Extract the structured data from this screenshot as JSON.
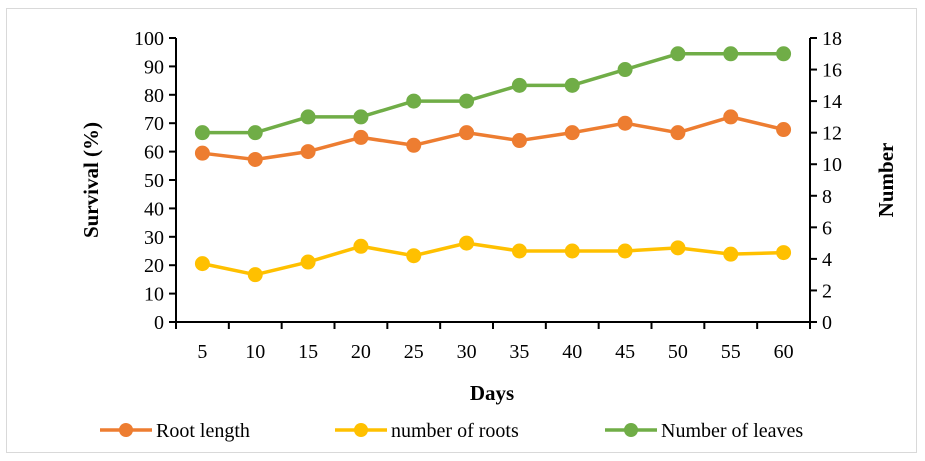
{
  "chart_data": {
    "type": "line",
    "title": "",
    "x": [
      5,
      10,
      15,
      20,
      25,
      30,
      35,
      40,
      45,
      50,
      55,
      60
    ],
    "xlabel": "Days",
    "ylabel_left": "Survival (%)",
    "ylabel_right": "Number",
    "ylim_left": [
      0,
      100
    ],
    "ylim_right": [
      0,
      18
    ],
    "yticks_left": [
      0,
      10,
      20,
      30,
      40,
      50,
      60,
      70,
      80,
      90,
      100
    ],
    "yticks_right": [
      0,
      2,
      4,
      6,
      8,
      10,
      12,
      14,
      16,
      18
    ],
    "grid": false,
    "legend_position": "bottom",
    "series": [
      {
        "name": "Root length",
        "axis": "right",
        "color": "#ed7d31",
        "values": [
          10.7,
          10.3,
          10.8,
          11.7,
          11.2,
          12.0,
          11.5,
          12.0,
          12.6,
          12.0,
          13.0,
          12.2
        ]
      },
      {
        "name": "number of roots",
        "axis": "right",
        "color": "#ffc000",
        "values": [
          3.7,
          3.0,
          3.8,
          4.8,
          4.2,
          5.0,
          4.5,
          4.5,
          4.5,
          4.7,
          4.3,
          4.4
        ]
      },
      {
        "name": "Number of leaves",
        "axis": "right",
        "color": "#70ad47",
        "values": [
          12,
          12,
          13,
          13,
          14,
          14,
          15,
          15,
          16,
          17,
          17,
          17
        ]
      }
    ]
  }
}
